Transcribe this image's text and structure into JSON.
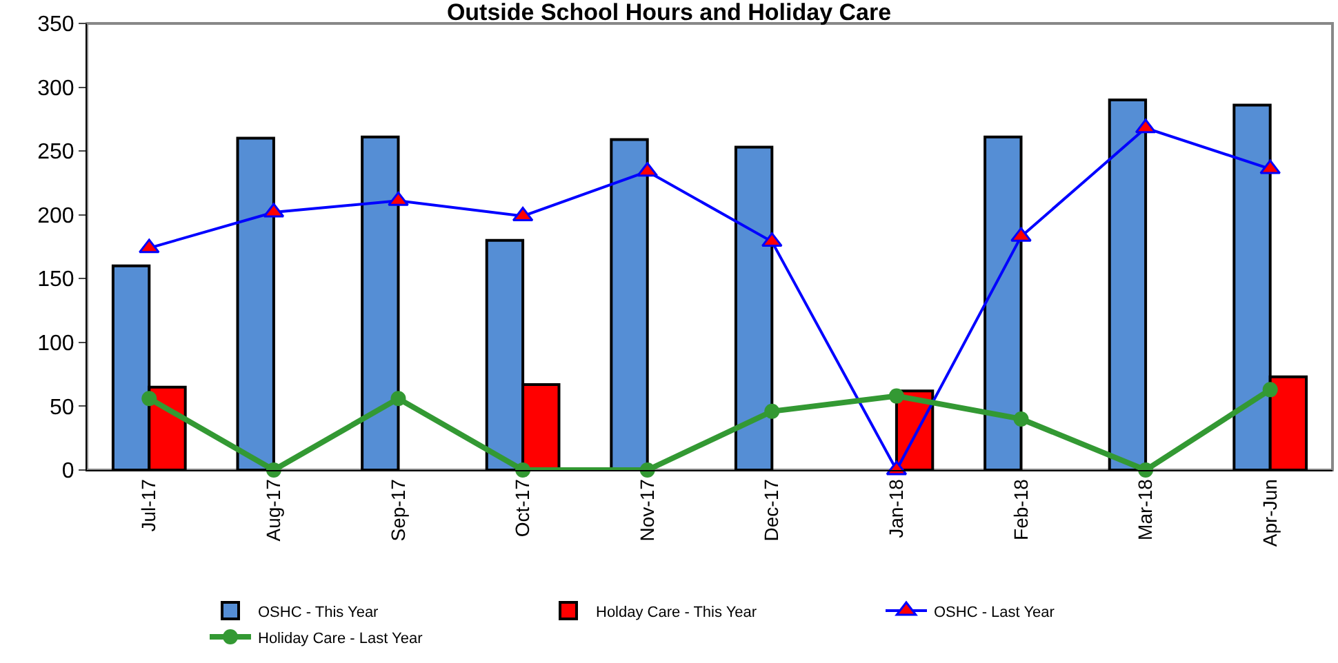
{
  "chart_data": {
    "type": "bar",
    "title": "Outside School Hours and Holiday Care",
    "categories": [
      "Jul-17",
      "Aug-17",
      "Sep-17",
      "Oct-17",
      "Nov-17",
      "Dec-17",
      "Jan-18",
      "Feb-18",
      "Mar-18",
      "Apr-Jun"
    ],
    "series": [
      {
        "name": "OSHC - This Year",
        "color": "#558ed5",
        "values": [
          160,
          260,
          261,
          180,
          259,
          253,
          null,
          261,
          290,
          286
        ]
      },
      {
        "name": "Holday Care - This Year",
        "color": "#ff0000",
        "values": [
          65,
          null,
          null,
          67,
          null,
          null,
          62,
          null,
          null,
          73
        ]
      },
      {
        "name": "OSHC - Last Year",
        "type": "line",
        "color": "#0000ff",
        "marker": "triangle",
        "values": [
          174,
          202,
          211,
          199,
          234,
          179,
          0,
          183,
          268,
          236
        ]
      },
      {
        "name": "Holiday Care - Last Year",
        "type": "line",
        "color": "#339933",
        "marker": "circle",
        "values": [
          56,
          0,
          56,
          0,
          0,
          46,
          58,
          40,
          0,
          63
        ]
      }
    ],
    "ylim": [
      0,
      350
    ],
    "yticks": [
      0,
      50,
      100,
      150,
      200,
      250,
      300,
      350
    ],
    "grid": false,
    "legend": "bottom"
  }
}
